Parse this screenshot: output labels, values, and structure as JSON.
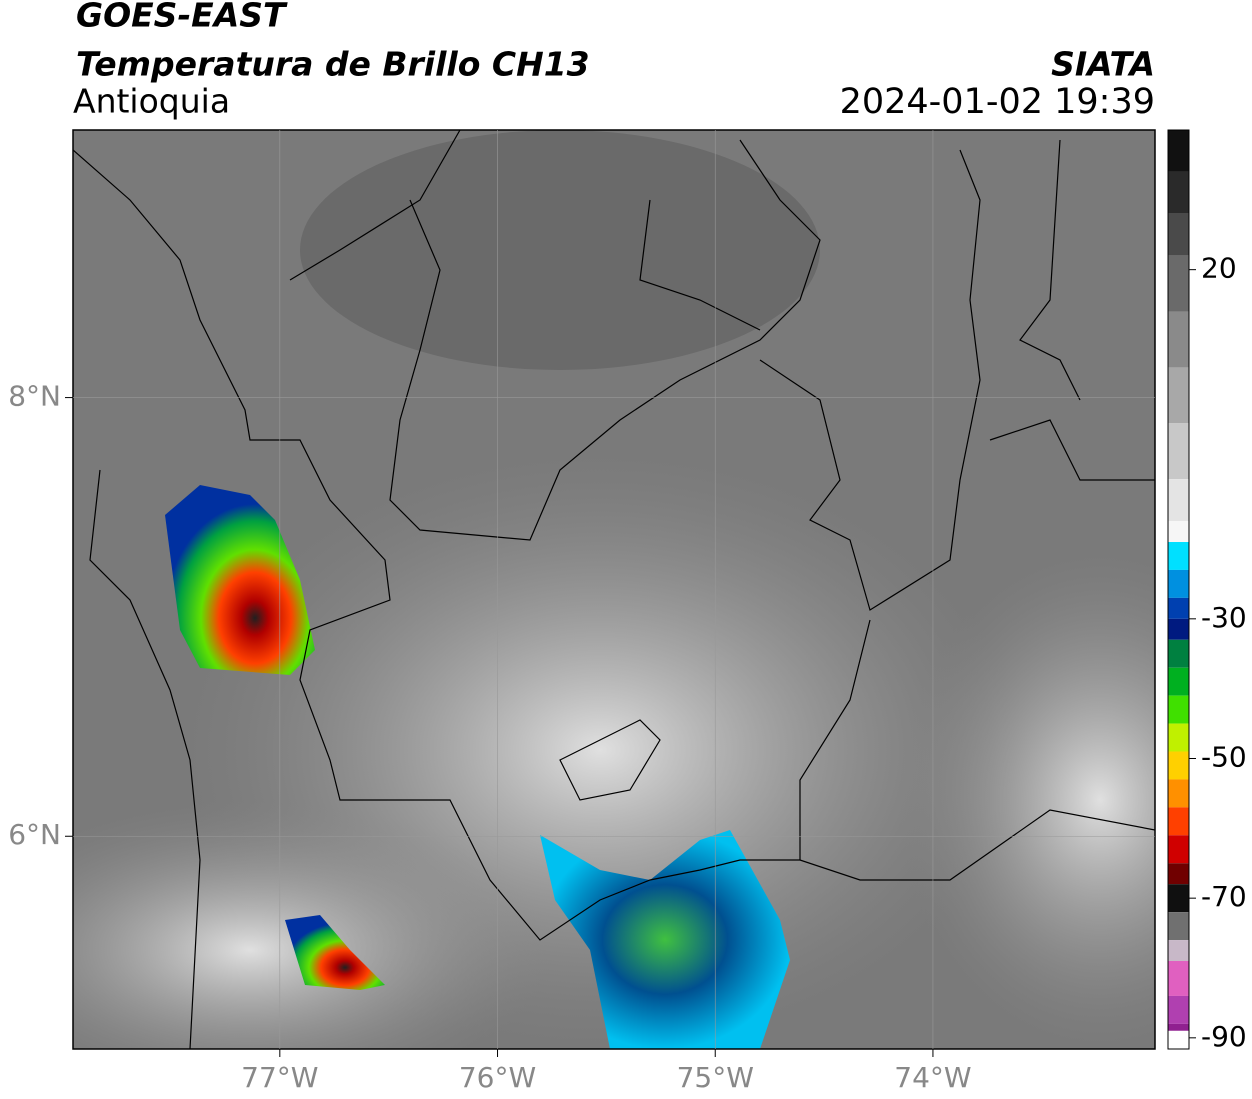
{
  "chart_data": {
    "type": "map",
    "title": "GOES-EAST",
    "subtitle": "Temperatura de Brillo CH13",
    "region": "Antioquia",
    "source": "SIATA",
    "datetime": "2024-01-02 19:39",
    "xlim": [
      -77.95,
      -72.98
    ],
    "ylim": [
      5.03,
      9.22
    ],
    "xticks": [
      {
        "value": -77,
        "label": "77°W"
      },
      {
        "value": -76,
        "label": "76°W"
      },
      {
        "value": -75,
        "label": "75°W"
      },
      {
        "value": -74,
        "label": "74°W"
      }
    ],
    "yticks": [
      {
        "value": 6,
        "label": "6°N"
      },
      {
        "value": 8,
        "label": "8°N"
      }
    ],
    "grid": true,
    "colorbar": {
      "lim": [
        -91.6,
        40
      ],
      "ticks": [
        20,
        -30,
        -50,
        -70,
        -90
      ],
      "stops": [
        {
          "value": 40,
          "color": "#111111"
        },
        {
          "value": 34,
          "color": "#2a2a2a"
        },
        {
          "value": 28,
          "color": "#4a4a4a"
        },
        {
          "value": 22,
          "color": "#6a6a6a"
        },
        {
          "value": 14,
          "color": "#8a8a8a"
        },
        {
          "value": 6,
          "color": "#a8a8a8"
        },
        {
          "value": -2,
          "color": "#c8c8c8"
        },
        {
          "value": -10,
          "color": "#e4e4e4"
        },
        {
          "value": -16,
          "color": "#f6f6f6"
        },
        {
          "value": -19,
          "color": "#00e0ff"
        },
        {
          "value": -23,
          "color": "#0090e0"
        },
        {
          "value": -27,
          "color": "#0040b0"
        },
        {
          "value": -30,
          "color": "#001a80"
        },
        {
          "value": -33,
          "color": "#008040"
        },
        {
          "value": -37,
          "color": "#00b020"
        },
        {
          "value": -41,
          "color": "#40e000"
        },
        {
          "value": -45,
          "color": "#c0f000"
        },
        {
          "value": -49,
          "color": "#ffd000"
        },
        {
          "value": -53,
          "color": "#ff9000"
        },
        {
          "value": -57,
          "color": "#ff4000"
        },
        {
          "value": -61,
          "color": "#d00000"
        },
        {
          "value": -65,
          "color": "#700000"
        },
        {
          "value": -68,
          "color": "#101010"
        },
        {
          "value": -72,
          "color": "#707070"
        },
        {
          "value": -76,
          "color": "#c8b8c8"
        },
        {
          "value": -79,
          "color": "#e060c0"
        },
        {
          "value": -84,
          "color": "#b040b0"
        },
        {
          "value": -88,
          "color": "#902090"
        },
        {
          "value": -89,
          "color": "#ffffff"
        }
      ]
    }
  }
}
